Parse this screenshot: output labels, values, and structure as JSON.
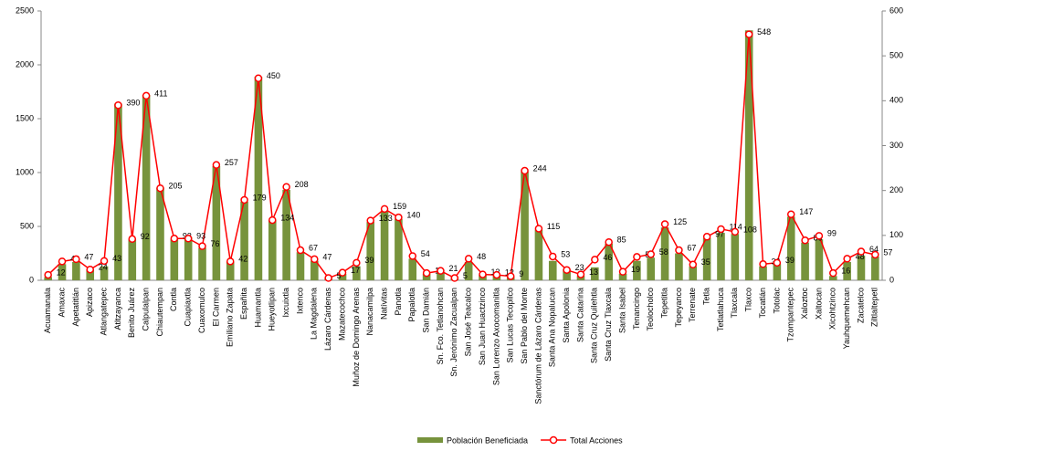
{
  "chart_data": {
    "type": "bar-line",
    "categories": [
      "Acuamanala",
      "Amaxac",
      "Apetatitlán",
      "Apizaco",
      "Atlangatepec",
      "Atltzayanca",
      "Benito Juárez",
      "Calpulalpan",
      "Chiautempan",
      "Contla",
      "Cuapiaxtla",
      "Cuaxomulco",
      "El Carmen",
      "Emiliano Zapata",
      "Españita",
      "Huamantla",
      "Hueyotlipan",
      "Ixcuixtla",
      "Ixtenco",
      "La Magdalena",
      "Lázaro Cárdenas",
      "Mazatecochco",
      "Muñoz de Domingo Arenas",
      "Nanacamilpa",
      "Natívitas",
      "Panotla",
      "Papalotla",
      "San Damián",
      "Sn. Fco. Tetlanohcan",
      "Sn. Jerónimo Zacualpan",
      "San José Teacalco",
      "San Juan Huactzinco",
      "San Lorenzo Axocomanitla",
      "San Lucas Tecopilco",
      "San Pablo del Monte",
      "Sanctórum de Lázaro Cárdenas",
      "Santa Ana Nopalucan",
      "Santa Apolonia",
      "Santa Catarina",
      "Santa Cruz Quilehtla",
      "Santa Cruz Tlaxcala",
      "Santa Isabel",
      "Tenancingo",
      "Teolocholco",
      "Tepetitla",
      "Tepeyanco",
      "Terrenate",
      "Tetla",
      "Tetlatlahuca",
      "Tlaxcala",
      "Tlaxco",
      "Tocatlán",
      "Totolac",
      "Tzompantepec",
      "Xaloztoc",
      "Xaltocan",
      "Xicohtzinco",
      "Yauhquemehcan",
      "Zacatelco",
      "Ziltlaltepetl"
    ],
    "series": [
      {
        "name": "Población Beneficiada",
        "color": "#77933c",
        "kind": "bar",
        "values": [
          30,
          150,
          170,
          100,
          130,
          1640,
          380,
          1720,
          860,
          380,
          400,
          300,
          1060,
          170,
          730,
          1890,
          560,
          840,
          260,
          180,
          20,
          60,
          130,
          540,
          640,
          570,
          200,
          60,
          70,
          30,
          170,
          50,
          50,
          30,
          1010,
          470,
          180,
          100,
          40,
          120,
          340,
          60,
          180,
          210,
          490,
          250,
          130,
          390,
          440,
          430,
          2320,
          130,
          150,
          590,
          350,
          380,
          40,
          170,
          230,
          220
        ]
      },
      {
        "name": "Total Acciones",
        "color": "#ff0000",
        "kind": "line",
        "axis": "y2",
        "values": [
          12,
          42,
          47,
          24,
          43,
          390,
          92,
          411,
          205,
          93,
          93,
          76,
          257,
          42,
          179,
          450,
          134,
          208,
          67,
          47,
          5,
          17,
          39,
          133,
          159,
          140,
          54,
          16,
          21,
          5,
          48,
          13,
          12,
          9,
          244,
          115,
          53,
          23,
          13,
          46,
          85,
          19,
          52,
          58,
          125,
          67,
          35,
          97,
          114,
          108,
          548,
          36,
          39,
          147,
          89,
          99,
          16,
          48,
          64,
          57
        ]
      }
    ],
    "ylim": [
      0,
      2500
    ],
    "yticks": [
      0,
      500,
      1000,
      1500,
      2000,
      2500
    ],
    "y2lim": [
      0,
      600
    ],
    "y2ticks": [
      0,
      100,
      200,
      300,
      400,
      500,
      600
    ]
  }
}
